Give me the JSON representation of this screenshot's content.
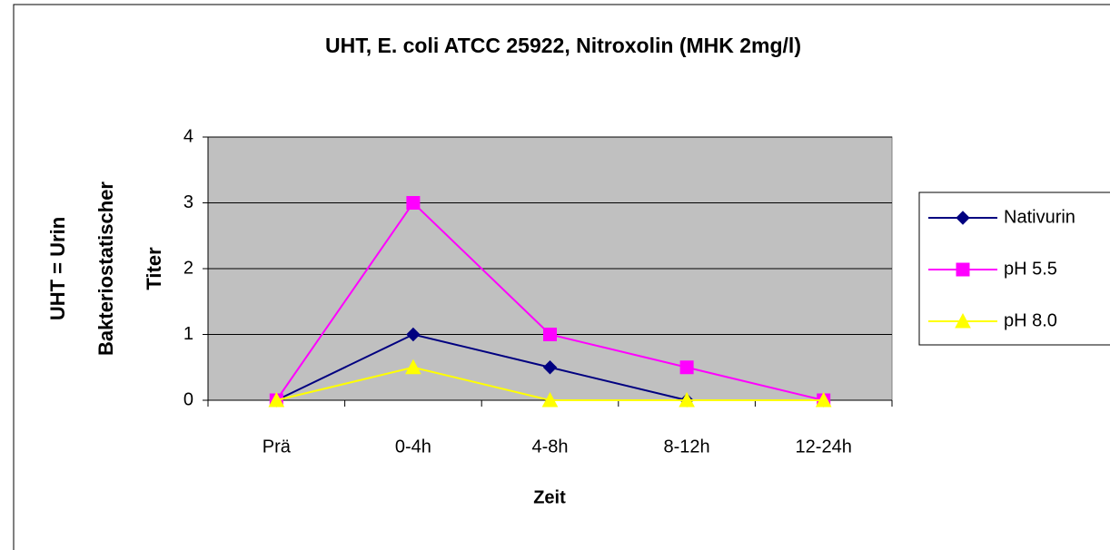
{
  "chart_data": {
    "type": "line",
    "title": "UHT, E. coli ATCC 25922, Nitroxolin (MHK 2mg/l)",
    "xlabel": "Zeit",
    "ylabel": [
      "UHT = Urin",
      "Bakteriostatischer",
      "Titer"
    ],
    "categories": [
      "Prä",
      "0-4h",
      "4-8h",
      "8-12h",
      "12-24h"
    ],
    "series": [
      {
        "name": "Nativurin",
        "color": "#000080",
        "marker": "diamond",
        "values": [
          0,
          1,
          0.5,
          0,
          0
        ]
      },
      {
        "name": "pH 5.5",
        "color": "#ff00ff",
        "marker": "square",
        "values": [
          0,
          3,
          1,
          0.5,
          0
        ]
      },
      {
        "name": "pH 8.0",
        "color": "#ffff00",
        "marker": "triangle",
        "values": [
          0,
          0.5,
          0,
          0,
          0
        ]
      }
    ],
    "ylim": [
      0,
      4
    ],
    "yticks": [
      0,
      1,
      2,
      3,
      4
    ],
    "grid": true,
    "legend": "right"
  }
}
